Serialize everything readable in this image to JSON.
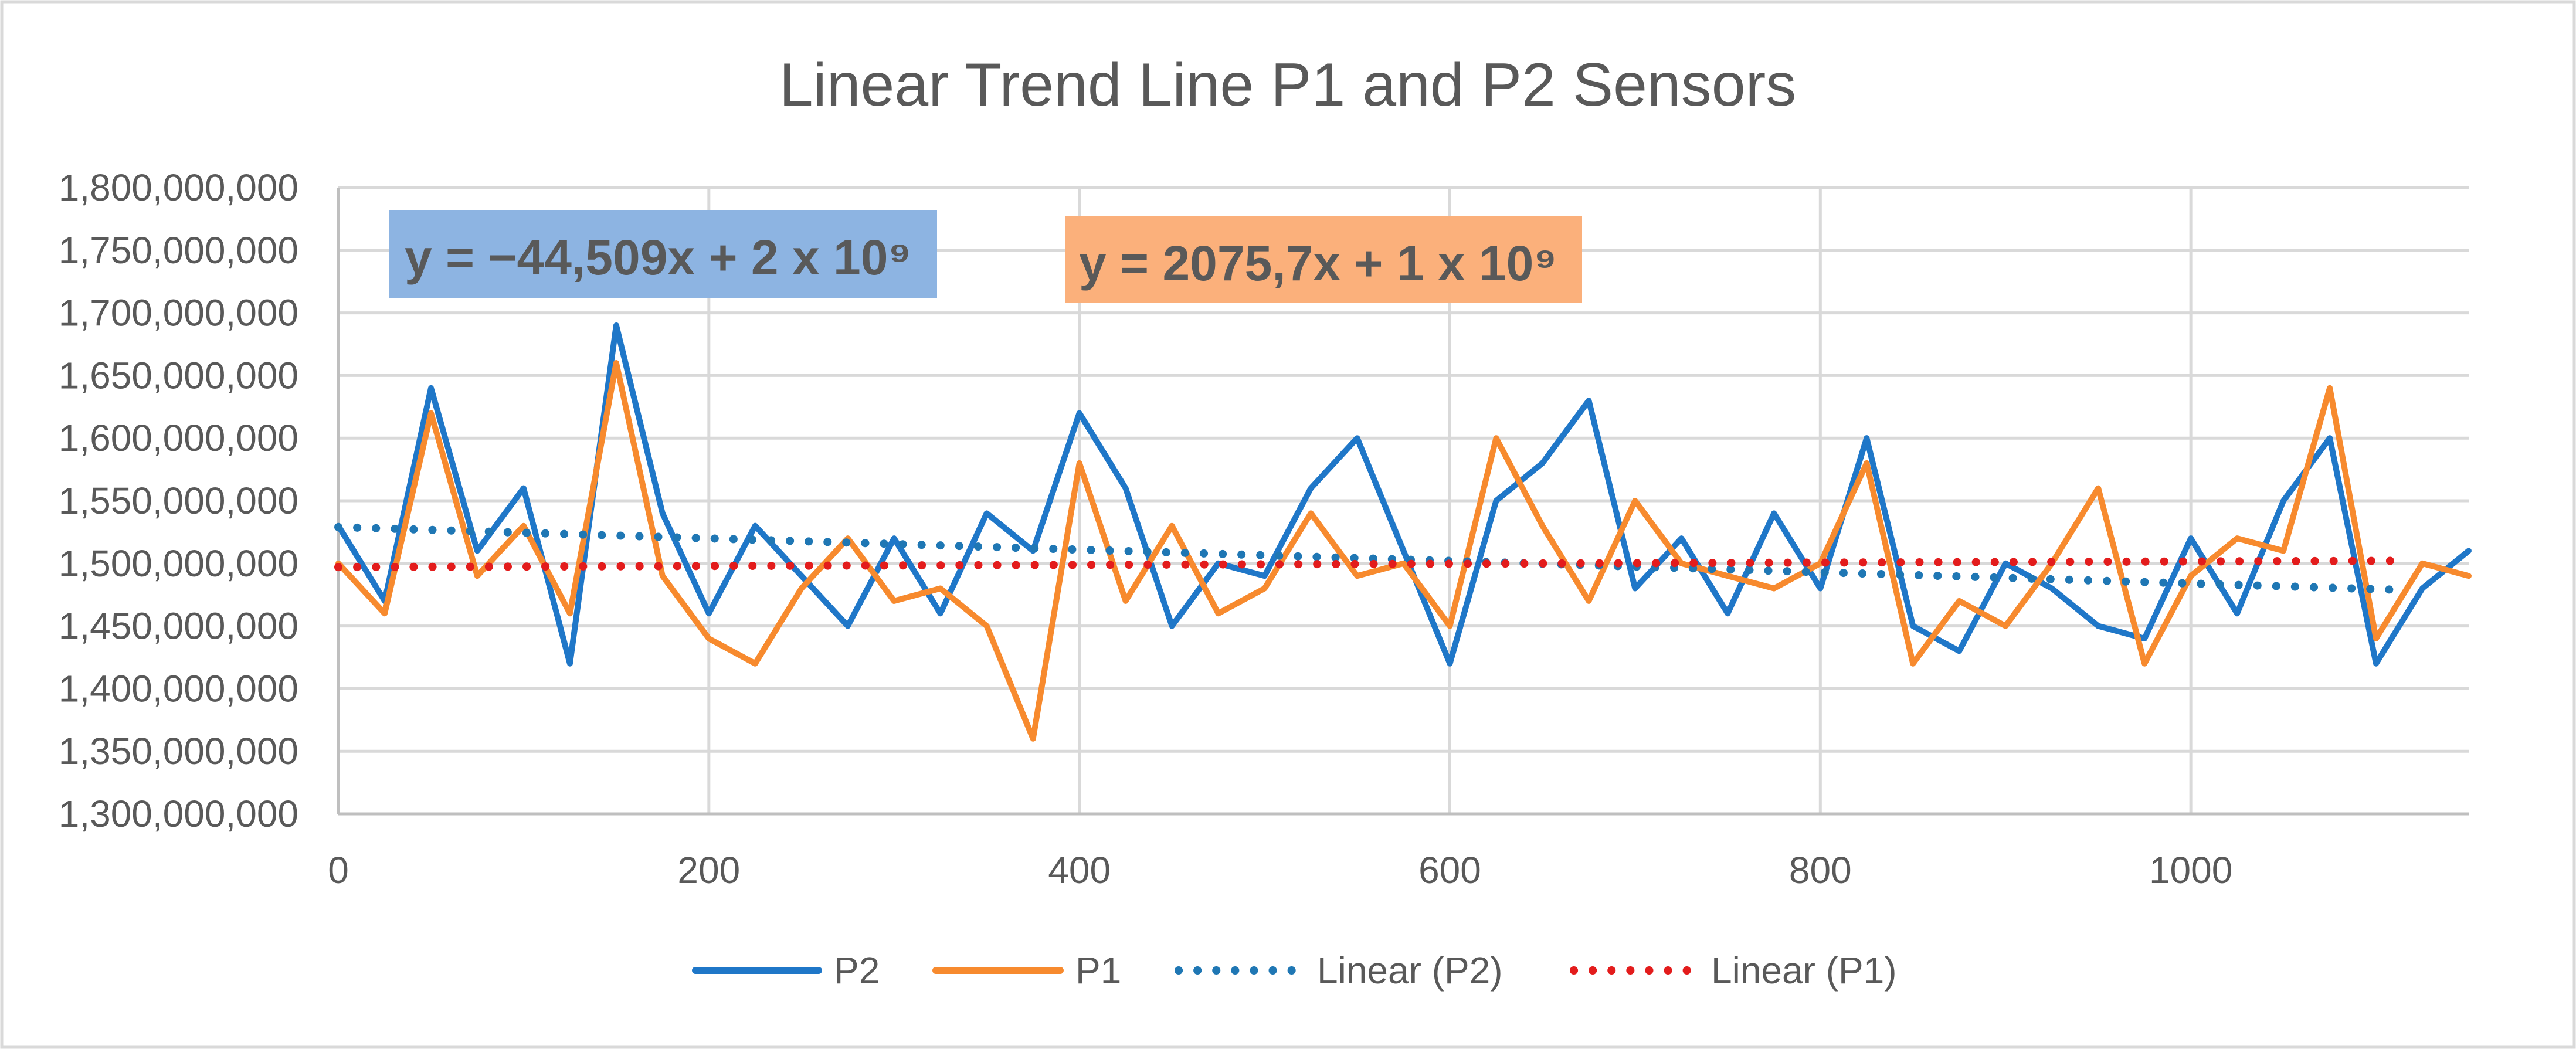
{
  "colors": {
    "p2": "#1f77c8",
    "p1": "#f78a2e",
    "linear_p2": "#1f77b4",
    "linear_p1": "#e31c1c",
    "eq_p2_box": "#8db4e2",
    "eq_p1_box": "#fbb07b"
  },
  "chart_data": {
    "type": "line",
    "title": "Linear Trend Line P1 and P2 Sensors",
    "xlabel": "",
    "ylabel": "",
    "xlim": [
      0,
      1150
    ],
    "ylim": [
      1300000000,
      1800000000
    ],
    "x_ticks": [
      0,
      200,
      400,
      600,
      800,
      1000
    ],
    "x_tick_labels": [
      "0",
      "200",
      "400",
      "600",
      "800",
      "1000"
    ],
    "y_ticks": [
      1300000000,
      1350000000,
      1400000000,
      1450000000,
      1500000000,
      1550000000,
      1600000000,
      1650000000,
      1700000000,
      1750000000,
      1800000000
    ],
    "y_tick_labels": [
      "1,300,000,000",
      "1,350,000,000",
      "1,400,000,000",
      "1,450,000,000",
      "1,500,000,000",
      "1,550,000,000",
      "1,600,000,000",
      "1,650,000,000",
      "1,700,000,000",
      "1,750,000,000",
      "1,800,000,000"
    ],
    "grid": true,
    "legend_position": "bottom",
    "series": [
      {
        "name": "P2",
        "style": "solid",
        "x_step": 25,
        "x_start": 0,
        "values": [
          1530000000,
          1470000000,
          1640000000,
          1510000000,
          1560000000,
          1420000000,
          1690000000,
          1540000000,
          1460000000,
          1530000000,
          1490000000,
          1450000000,
          1520000000,
          1460000000,
          1540000000,
          1510000000,
          1620000000,
          1560000000,
          1450000000,
          1500000000,
          1490000000,
          1560000000,
          1600000000,
          1510000000,
          1420000000,
          1550000000,
          1580000000,
          1630000000,
          1480000000,
          1520000000,
          1460000000,
          1540000000,
          1480000000,
          1600000000,
          1450000000,
          1430000000,
          1500000000,
          1480000000,
          1450000000,
          1440000000,
          1520000000,
          1460000000,
          1550000000,
          1600000000,
          1420000000,
          1480000000,
          1510000000
        ]
      },
      {
        "name": "P1",
        "style": "solid",
        "x_step": 25,
        "x_start": 0,
        "values": [
          1500000000,
          1460000000,
          1620000000,
          1490000000,
          1530000000,
          1460000000,
          1660000000,
          1490000000,
          1440000000,
          1420000000,
          1480000000,
          1520000000,
          1470000000,
          1480000000,
          1450000000,
          1360000000,
          1580000000,
          1470000000,
          1530000000,
          1460000000,
          1480000000,
          1540000000,
          1490000000,
          1500000000,
          1450000000,
          1600000000,
          1530000000,
          1470000000,
          1550000000,
          1500000000,
          1490000000,
          1480000000,
          1500000000,
          1580000000,
          1420000000,
          1470000000,
          1450000000,
          1500000000,
          1560000000,
          1420000000,
          1490000000,
          1520000000,
          1510000000,
          1640000000,
          1440000000,
          1500000000,
          1490000000
        ]
      },
      {
        "name": "Linear (P2)",
        "style": "dotted",
        "x": [
          0,
          1110
        ],
        "values": [
          1529000000,
          1479000000
        ]
      },
      {
        "name": "Linear (P1)",
        "style": "dotted",
        "x": [
          0,
          1110
        ],
        "values": [
          1497000000,
          1502000000
        ]
      }
    ],
    "annotations": [
      {
        "id": "eq_p2",
        "text": "y = −44,509x + 2 x 10⁹",
        "series": "Linear (P2)"
      },
      {
        "id": "eq_p1",
        "text": "y = 2075,7x + 1 x 10⁹",
        "series": "Linear (P1)"
      }
    ]
  }
}
